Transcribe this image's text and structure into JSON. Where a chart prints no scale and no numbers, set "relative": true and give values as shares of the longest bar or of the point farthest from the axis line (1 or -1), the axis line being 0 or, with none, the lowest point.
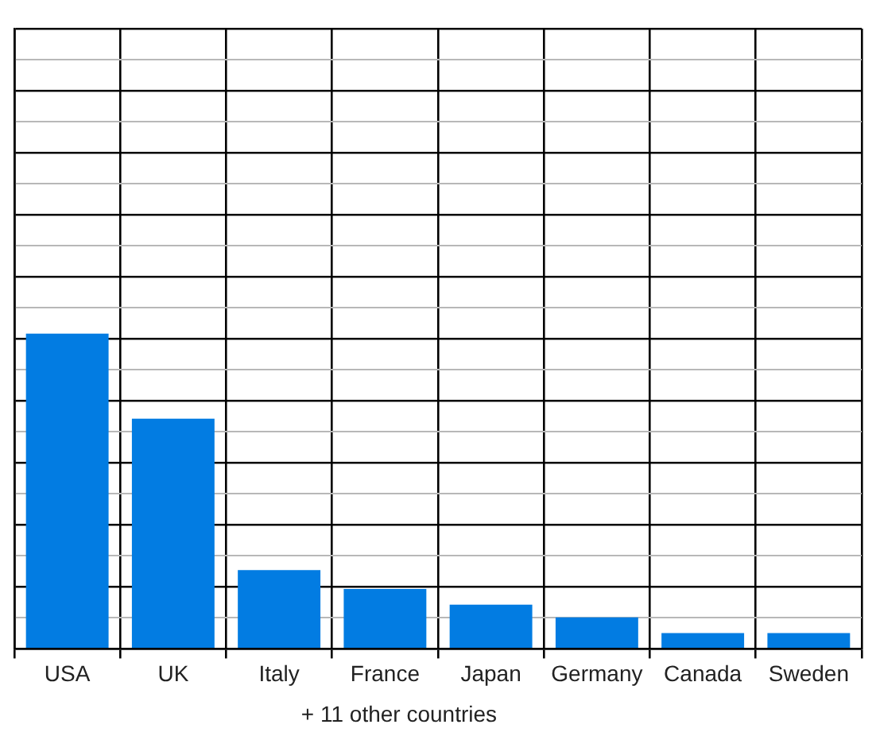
{
  "chart_data": {
    "type": "bar",
    "categories": [
      "USA",
      "UK",
      "Italy",
      "France",
      "Japan",
      "Germany",
      "Canada",
      "Sweden"
    ],
    "values": [
      1,
      0.73,
      0.25,
      0.19,
      0.14,
      0.1,
      0.05,
      0.05
    ],
    "color": "#027ce2",
    "relative": true,
    "grid": true,
    "annotations": [
      "+ 11 other countries"
    ]
  }
}
